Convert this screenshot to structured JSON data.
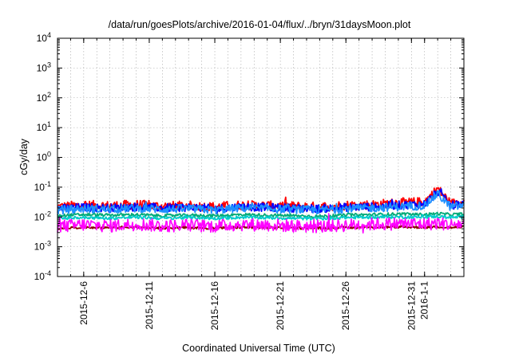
{
  "chart_data": {
    "type": "line",
    "title": "/data/run/goesPlots/archive/2016-01-04/flux/../bryn/31daysMoon.plot",
    "xlabel": "Coordinated Universal Time (UTC)",
    "ylabel": "cGy/day",
    "yscale": "log",
    "ylim": [
      0.0001,
      10000
    ],
    "xlim": [
      "2015-12-04",
      "2016-01-04"
    ],
    "grid": true,
    "legend": "none",
    "y_ticks": [
      {
        "value": 0.0001,
        "mantissa": "10",
        "exp": "-4"
      },
      {
        "value": 0.001,
        "mantissa": "10",
        "exp": "-3"
      },
      {
        "value": 0.01,
        "mantissa": "10",
        "exp": "-2"
      },
      {
        "value": 0.1,
        "mantissa": "10",
        "exp": "-1"
      },
      {
        "value": 1,
        "mantissa": "10",
        "exp": "0"
      },
      {
        "value": 10,
        "mantissa": "10",
        "exp": "1"
      },
      {
        "value": 100,
        "mantissa": "10",
        "exp": "2"
      },
      {
        "value": 1000,
        "mantissa": "10",
        "exp": "3"
      },
      {
        "value": 10000,
        "mantissa": "10",
        "exp": "4"
      }
    ],
    "x_ticks": [
      {
        "date": "2015-12-06",
        "label": "2015-12-6"
      },
      {
        "date": "2015-12-11",
        "label": "2015-12-11"
      },
      {
        "date": "2015-12-16",
        "label": "2015-12-16"
      },
      {
        "date": "2015-12-21",
        "label": "2015-12-21"
      },
      {
        "date": "2015-12-26",
        "label": "2015-12-26"
      },
      {
        "date": "2015-12-31",
        "label": "2015-12-31"
      },
      {
        "date": "2016-01-01",
        "label": "2016-1-1"
      }
    ],
    "series": [
      {
        "color": "#ff0000",
        "points": [
          [
            "2015-12-04",
            0.022
          ],
          [
            "2015-12-06",
            0.025
          ],
          [
            "2015-12-08",
            0.024
          ],
          [
            "2015-12-10",
            0.026
          ],
          [
            "2015-12-12",
            0.023
          ],
          [
            "2015-12-14",
            0.024
          ],
          [
            "2015-12-16",
            0.022
          ],
          [
            "2015-12-18",
            0.025
          ],
          [
            "2015-12-20",
            0.024
          ],
          [
            "2015-12-22",
            0.023
          ],
          [
            "2015-12-24",
            0.022
          ],
          [
            "2015-12-26",
            0.025
          ],
          [
            "2015-12-28",
            0.026
          ],
          [
            "2015-12-30",
            0.03
          ],
          [
            "2016-01-01",
            0.032
          ],
          [
            "2016-01-02",
            0.09
          ],
          [
            "2016-01-03",
            0.028
          ],
          [
            "2016-01-04",
            0.035
          ]
        ]
      },
      {
        "color": "#0000ff",
        "points": [
          [
            "2015-12-04",
            0.019
          ],
          [
            "2015-12-06",
            0.021
          ],
          [
            "2015-12-08",
            0.02
          ],
          [
            "2015-12-10",
            0.022
          ],
          [
            "2015-12-12",
            0.02
          ],
          [
            "2015-12-14",
            0.021
          ],
          [
            "2015-12-16",
            0.019
          ],
          [
            "2015-12-18",
            0.022
          ],
          [
            "2015-12-20",
            0.021
          ],
          [
            "2015-12-22",
            0.02
          ],
          [
            "2015-12-24",
            0.019
          ],
          [
            "2015-12-26",
            0.021
          ],
          [
            "2015-12-28",
            0.022
          ],
          [
            "2015-12-30",
            0.025
          ],
          [
            "2016-01-01",
            0.027
          ],
          [
            "2016-01-02",
            0.07
          ],
          [
            "2016-01-03",
            0.024
          ],
          [
            "2016-01-04",
            0.029
          ]
        ]
      },
      {
        "color": "#1e90ff",
        "points": [
          [
            "2015-12-04",
            0.017
          ],
          [
            "2015-12-06",
            0.019
          ],
          [
            "2015-12-08",
            0.018
          ],
          [
            "2015-12-10",
            0.02
          ],
          [
            "2015-12-12",
            0.018
          ],
          [
            "2015-12-14",
            0.019
          ],
          [
            "2015-12-16",
            0.017
          ],
          [
            "2015-12-18",
            0.02
          ],
          [
            "2015-12-20",
            0.019
          ],
          [
            "2015-12-22",
            0.018
          ],
          [
            "2015-12-24",
            0.017
          ],
          [
            "2015-12-26",
            0.019
          ],
          [
            "2015-12-28",
            0.02
          ],
          [
            "2015-12-30",
            0.022
          ],
          [
            "2016-01-01",
            0.024
          ],
          [
            "2016-01-02",
            0.06
          ],
          [
            "2016-01-03",
            0.021
          ],
          [
            "2016-01-04",
            0.025
          ]
        ]
      },
      {
        "color": "#00aa77",
        "points": [
          [
            "2015-12-04",
            0.011
          ],
          [
            "2015-12-06",
            0.012
          ],
          [
            "2015-12-08",
            0.0115
          ],
          [
            "2015-12-10",
            0.012
          ],
          [
            "2015-12-12",
            0.011
          ],
          [
            "2015-12-14",
            0.0115
          ],
          [
            "2015-12-16",
            0.011
          ],
          [
            "2015-12-18",
            0.012
          ],
          [
            "2015-12-20",
            0.0115
          ],
          [
            "2015-12-22",
            0.011
          ],
          [
            "2015-12-24",
            0.0105
          ],
          [
            "2015-12-26",
            0.0115
          ],
          [
            "2015-12-28",
            0.012
          ],
          [
            "2015-12-30",
            0.0125
          ],
          [
            "2016-01-01",
            0.012
          ],
          [
            "2016-01-02",
            0.013
          ],
          [
            "2016-01-03",
            0.012
          ],
          [
            "2016-01-04",
            0.0125
          ]
        ]
      },
      {
        "color": "#00cccc",
        "points": [
          [
            "2015-12-04",
            0.009
          ],
          [
            "2015-12-06",
            0.0095
          ],
          [
            "2015-12-08",
            0.009
          ],
          [
            "2015-12-10",
            0.0098
          ],
          [
            "2015-12-12",
            0.009
          ],
          [
            "2015-12-14",
            0.0095
          ],
          [
            "2015-12-16",
            0.009
          ],
          [
            "2015-12-18",
            0.0097
          ],
          [
            "2015-12-20",
            0.0094
          ],
          [
            "2015-12-22",
            0.009
          ],
          [
            "2015-12-24",
            0.0088
          ],
          [
            "2015-12-26",
            0.0095
          ],
          [
            "2015-12-28",
            0.0098
          ],
          [
            "2015-12-30",
            0.01
          ],
          [
            "2016-01-01",
            0.0098
          ],
          [
            "2016-01-02",
            0.0105
          ],
          [
            "2016-01-03",
            0.0096
          ],
          [
            "2016-01-04",
            0.01
          ]
        ]
      },
      {
        "color": "#8b0000",
        "points": [
          [
            "2015-12-04",
            0.0042
          ],
          [
            "2015-12-06",
            0.0045
          ],
          [
            "2015-12-08",
            0.0044
          ],
          [
            "2015-12-10",
            0.0046
          ],
          [
            "2015-12-12",
            0.0043
          ],
          [
            "2015-12-14",
            0.0044
          ],
          [
            "2015-12-16",
            0.0042
          ],
          [
            "2015-12-18",
            0.0045
          ],
          [
            "2015-12-20",
            0.0044
          ],
          [
            "2015-12-22",
            0.0043
          ],
          [
            "2015-12-24",
            0.0042
          ],
          [
            "2015-12-26",
            0.0044
          ],
          [
            "2015-12-28",
            0.0045
          ],
          [
            "2015-12-30",
            0.0046
          ],
          [
            "2016-01-01",
            0.0045
          ],
          [
            "2016-01-02",
            0.0047
          ],
          [
            "2016-01-03",
            0.0044
          ],
          [
            "2016-01-04",
            0.0046
          ]
        ]
      },
      {
        "color": "#ff00ff",
        "points": [
          [
            "2015-12-04",
            0.0048
          ],
          [
            "2015-12-06",
            0.0055
          ],
          [
            "2015-12-08",
            0.005
          ],
          [
            "2015-12-10",
            0.0058
          ],
          [
            "2015-12-12",
            0.005
          ],
          [
            "2015-12-14",
            0.0053
          ],
          [
            "2015-12-16",
            0.0049
          ],
          [
            "2015-12-18",
            0.0056
          ],
          [
            "2015-12-20",
            0.0054
          ],
          [
            "2015-12-22",
            0.005
          ],
          [
            "2015-12-24",
            0.0047
          ],
          [
            "2015-12-26",
            0.0053
          ],
          [
            "2015-12-28",
            0.0057
          ],
          [
            "2015-12-30",
            0.006
          ],
          [
            "2016-01-01",
            0.0058
          ],
          [
            "2016-01-02",
            0.0062
          ],
          [
            "2016-01-03",
            0.0055
          ],
          [
            "2016-01-04",
            0.006
          ]
        ]
      }
    ]
  }
}
